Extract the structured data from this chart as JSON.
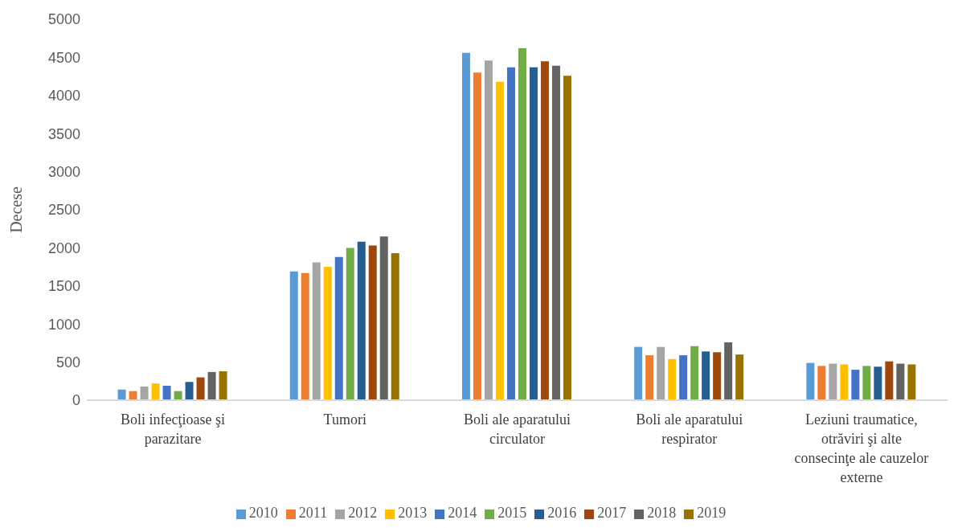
{
  "chart_data": {
    "type": "bar",
    "ylabel": "Decese",
    "categories": [
      "Boli infecţioase şi parazitare",
      "Tumori",
      "Boli ale aparatului circulator",
      "Boli ale aparatului respirator",
      "Leziuni traumatice, otrăviri şi alte consecinţe ale cauzelor externe"
    ],
    "series": [
      {
        "name": "2010",
        "color": "#5b9bd5",
        "values": [
          140,
          1690,
          4560,
          700,
          490
        ]
      },
      {
        "name": "2011",
        "color": "#ed7d31",
        "values": [
          120,
          1670,
          4300,
          590,
          450
        ]
      },
      {
        "name": "2012",
        "color": "#a5a5a5",
        "values": [
          180,
          1810,
          4460,
          700,
          480
        ]
      },
      {
        "name": "2013",
        "color": "#ffc000",
        "values": [
          220,
          1750,
          4180,
          540,
          470
        ]
      },
      {
        "name": "2014",
        "color": "#4472c4",
        "values": [
          190,
          1880,
          4370,
          590,
          400
        ]
      },
      {
        "name": "2015",
        "color": "#70ad47",
        "values": [
          120,
          2000,
          4620,
          710,
          450
        ]
      },
      {
        "name": "2016",
        "color": "#255e91",
        "values": [
          240,
          2080,
          4370,
          640,
          440
        ]
      },
      {
        "name": "2017",
        "color": "#9e480e",
        "values": [
          300,
          2030,
          4450,
          630,
          510
        ]
      },
      {
        "name": "2018",
        "color": "#636363",
        "values": [
          370,
          2150,
          4390,
          760,
          480
        ]
      },
      {
        "name": "2019",
        "color": "#997300",
        "values": [
          380,
          1930,
          4260,
          600,
          470
        ]
      }
    ],
    "ylim": [
      0,
      5000
    ],
    "yticks": [
      0,
      500,
      1000,
      1500,
      2000,
      2500,
      3000,
      3500,
      4000,
      4500,
      5000
    ],
    "grid": false,
    "legend": "bottom"
  }
}
